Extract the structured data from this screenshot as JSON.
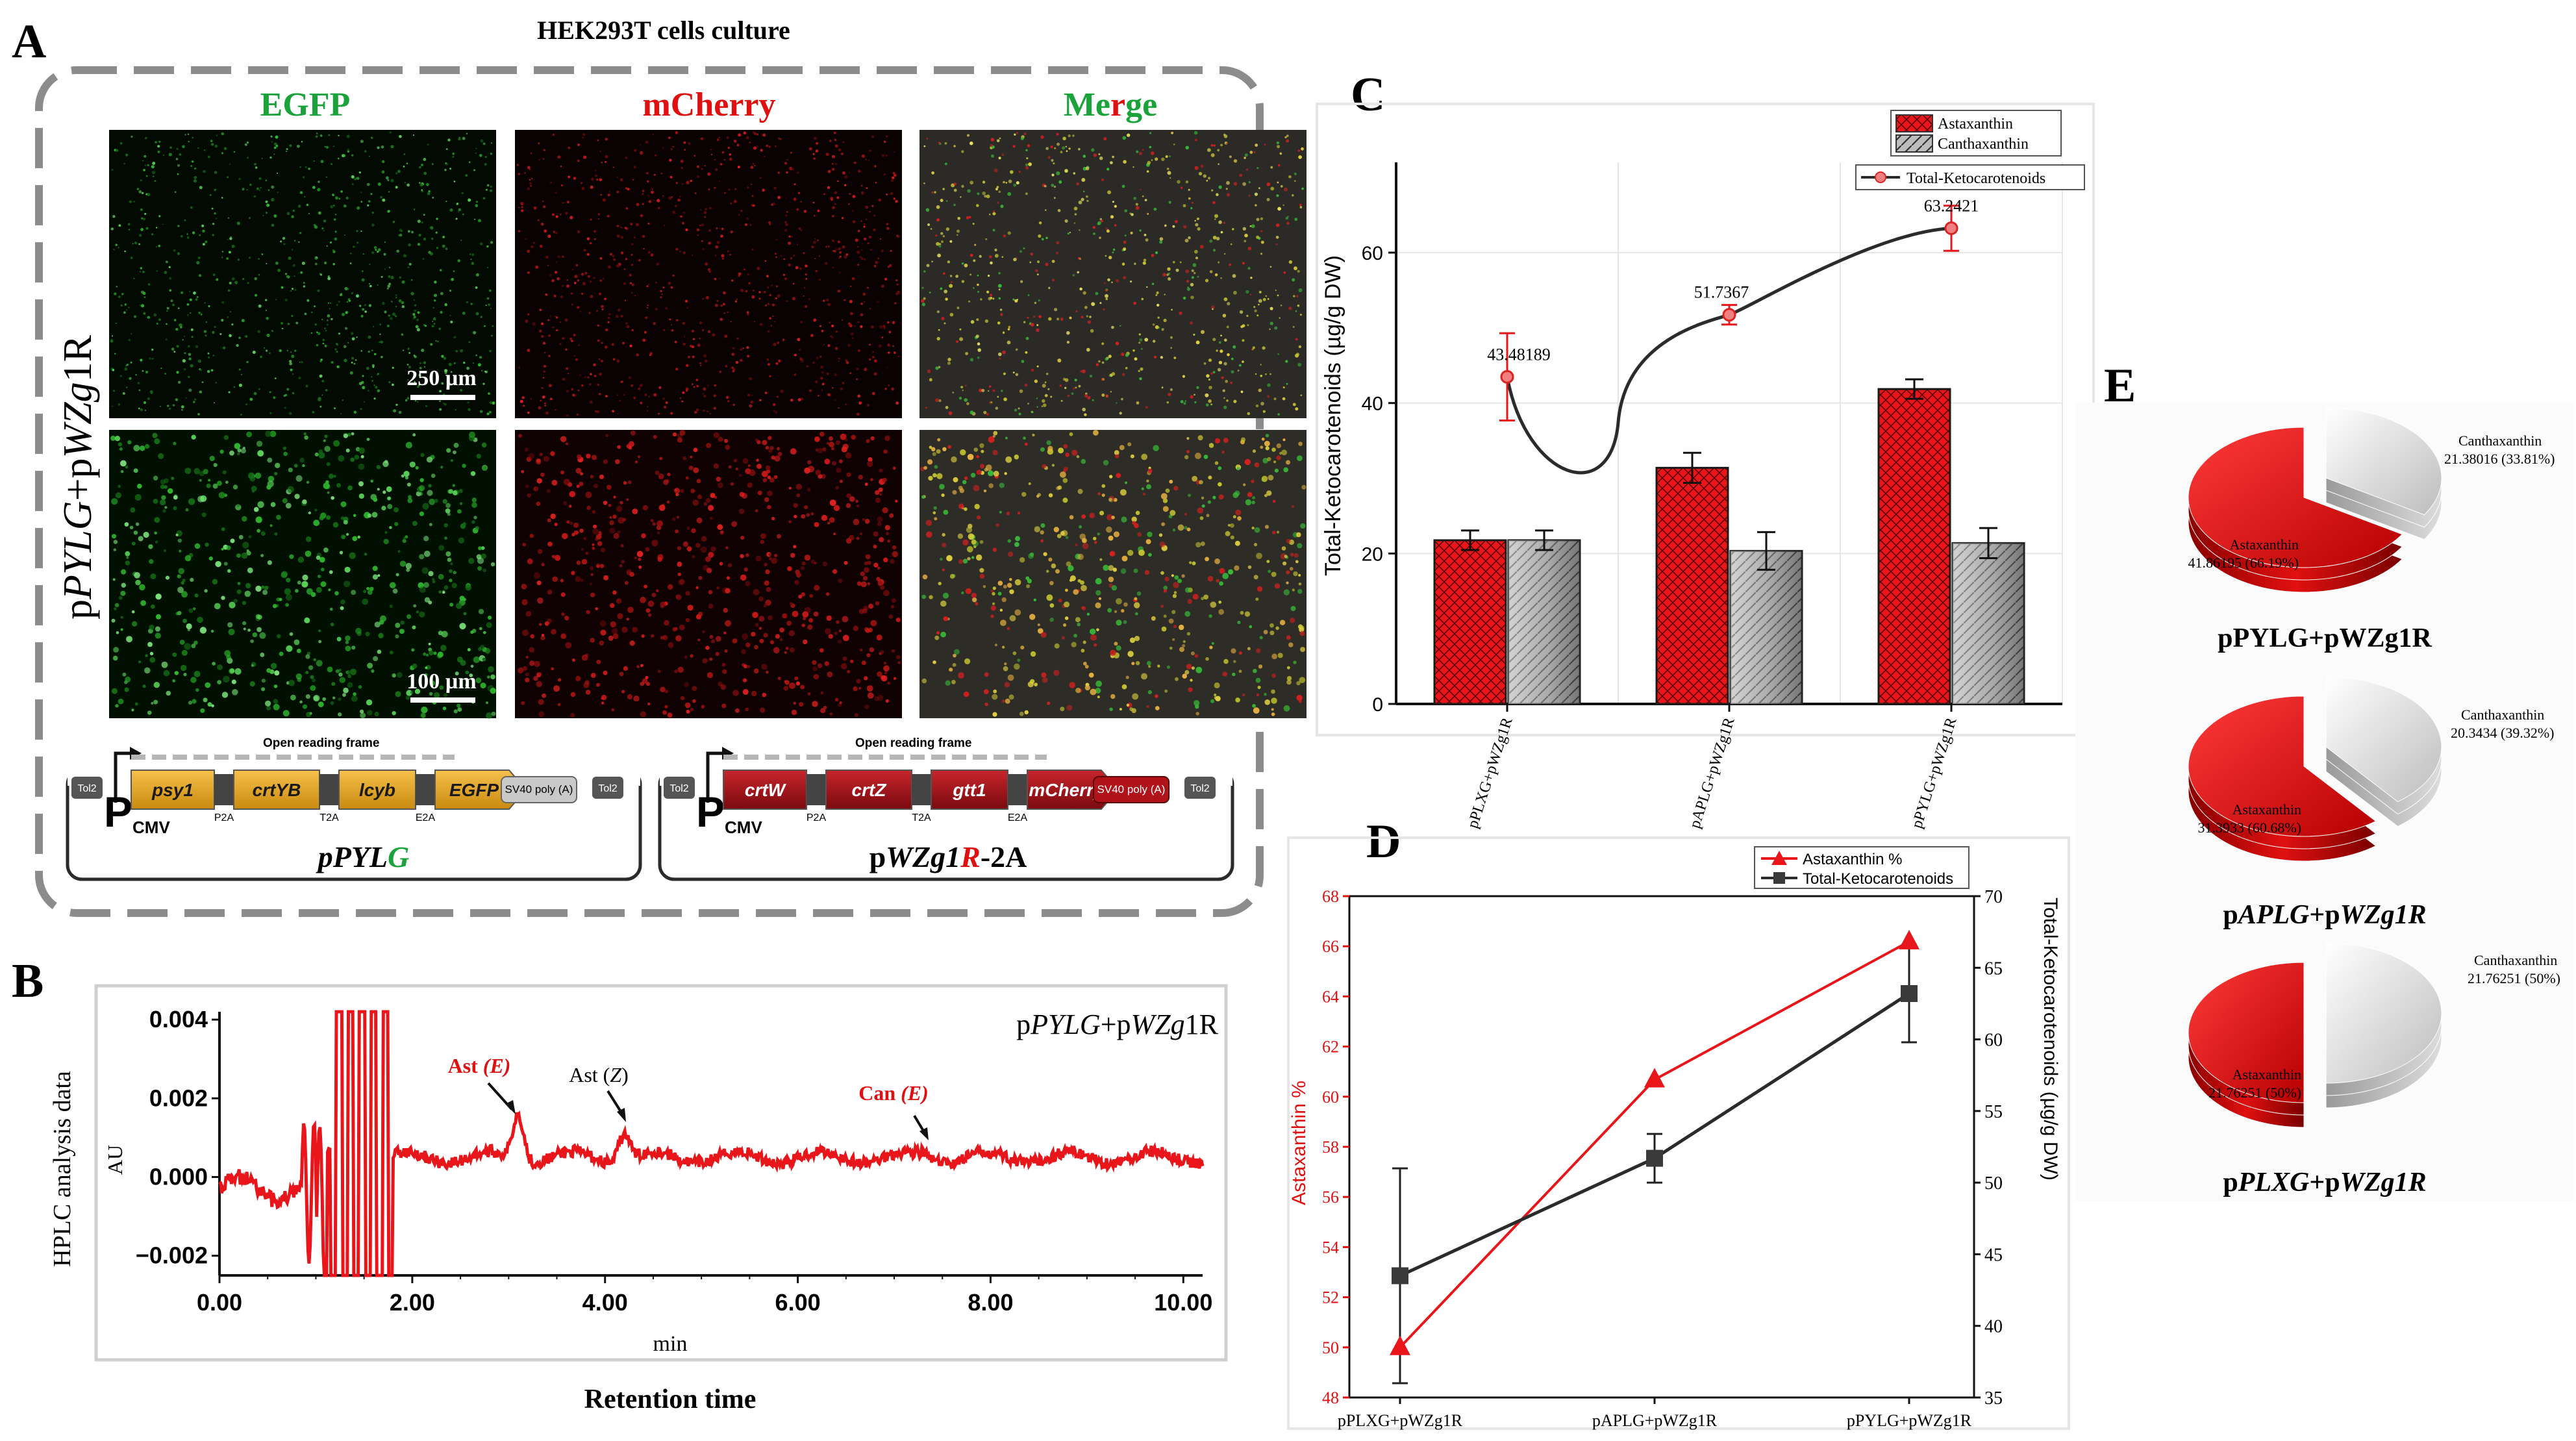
{
  "panel_letters": {
    "a": "A",
    "b": "B",
    "c": "C",
    "d": "D",
    "e": "E"
  },
  "panel_a": {
    "title": "HEK293T cells  culture",
    "col_egfp": "EGFP",
    "col_mcherry": "mCherry",
    "col_merge_1": "Me",
    "col_merge_2": "r",
    "col_merge_3": "ge",
    "row_label_p1": "p",
    "row_label_it1": "PYLG",
    "row_label_p2": "+p",
    "row_label_it2": "WZg",
    "row_label_p3": "1R",
    "scale_top": "250 µm",
    "scale_bottom": "100 µm",
    "plasmid1": {
      "orf": "Open reading frame",
      "tol_left": "Tol2",
      "tol_right": "Tol2",
      "promoter": "P",
      "promoter_sub": "CMV",
      "genes": [
        "psy1",
        "crtYB",
        "lcyb",
        "EGFP"
      ],
      "linkers": [
        "P2A",
        "T2A",
        "E2A"
      ],
      "polya": "SV40 poly (A)",
      "name_a": "pPYL",
      "name_b": "G"
    },
    "plasmid2": {
      "orf": "Open reading frame",
      "tol_left": "Tol2",
      "tol_right": "Tol2",
      "promoter": "P",
      "promoter_sub": "CMV",
      "genes": [
        "crtW",
        "crtZ",
        "gtt1",
        "mCherry"
      ],
      "linkers": [
        "P2A",
        "T2A",
        "E2A"
      ],
      "polya": "SV40 poly (A)",
      "name_a": "p",
      "name_b": "WZg1",
      "name_c": "R",
      "name_d": "-2A"
    }
  },
  "panel_b": {
    "ylabel": "HPLC analysis data",
    "unit": "AU",
    "xlabel_unit": "min",
    "xlabel": "Retention time",
    "sample_p1": "p",
    "sample_it1": "PYLG",
    "sample_p2": "+p",
    "sample_it2": "WZg",
    "sample_p3": "1R",
    "peak_ast_e": "Ast ",
    "peak_ast_e_it": "(E)",
    "peak_ast_z": "Ast (",
    "peak_ast_z_it": "Z",
    "peak_ast_z_end": ")",
    "peak_can_e": "Can ",
    "peak_can_e_it": "(E)",
    "yticks": [
      "0.004",
      "0.002",
      "0.000",
      "−0.002"
    ],
    "xticks": [
      "0.00",
      "2.00",
      "4.00",
      "6.00",
      "8.00",
      "10.00"
    ]
  },
  "panel_c_labels": {
    "ylabel": "Total-Ketocarotenoids (µg/g DW)",
    "yticks": [
      "0",
      "20",
      "40",
      "60"
    ],
    "legend_ast": "Astaxanthin",
    "legend_can": "Canthaxanthin",
    "legend_total": "Total-Ketocarotenoids",
    "point_labels": [
      "43.48189",
      "51.7367",
      "63.2421"
    ]
  },
  "panel_d_labels": {
    "ylabel_left": "Astaxanthin %",
    "ylabel_right": "Total-Ketocarotenoids (µg/g DW)",
    "legend_ast": "Astaxanthin %",
    "legend_total": "Total-Ketocarotenoids",
    "yticks_left": [
      "48",
      "50",
      "52",
      "54",
      "56",
      "58",
      "60",
      "62",
      "64",
      "66",
      "68"
    ],
    "yticks_right": [
      "35",
      "40",
      "45",
      "50",
      "55",
      "60",
      "65",
      "70"
    ]
  },
  "panel_e": {
    "pie1": {
      "ast": "Astaxanthin",
      "ast_val": "41.86195 (66.19%)",
      "can": "Canthaxanthin",
      "can_val": "21.38016 (33.81%)",
      "caption": "pPYLG+pWZg1R"
    },
    "pie2": {
      "ast": "Astaxanthin",
      "ast_val": "31.3933 (60.68%)",
      "can": "Canthaxanthin",
      "can_val": "20.3434 (39.32%)",
      "caption_p1": "p",
      "caption_it1": "APLG",
      "caption_p2": "+p",
      "caption_it2": "WZg1R"
    },
    "pie3": {
      "ast": "Astaxanthin",
      "ast_val": "21.76251 (50%)",
      "can": "Canthaxanthin",
      "can_val": "21.76251 (50%)",
      "caption_p1": "p",
      "caption_it1": "PLXG",
      "caption_p2": "+p",
      "caption_it2": "WZg1R"
    }
  },
  "colors": {
    "astaxanthin": "#e8161a",
    "canthaxanthin": "#9e9e9e",
    "line": "#2b2b2b",
    "egfp": "#16a34a",
    "mcherry": "#e01010",
    "plasmid1": "#e9a21c",
    "plasmid2": "#a01218"
  },
  "chart_data": [
    {
      "type": "bar",
      "title": "C",
      "categories": [
        "pPLXG+pWZg1R",
        "pAPLG+pWZg1R",
        "pPYLG+pWZg1R"
      ],
      "series": [
        {
          "name": "Astaxanthin",
          "values": [
            21.76,
            31.39,
            41.86
          ],
          "errors": [
            1.3,
            2.0,
            1.3
          ]
        },
        {
          "name": "Canthaxanthin",
          "values": [
            21.76,
            20.34,
            21.38
          ],
          "errors": [
            1.3,
            2.5,
            2.0
          ]
        },
        {
          "name": "Total-Ketocarotenoids",
          "kind": "line",
          "values": [
            43.48189,
            51.7367,
            63.2421
          ],
          "errors": [
            5.8,
            1.3,
            3.0
          ]
        }
      ],
      "xlabel": "",
      "ylabel": "Total-Ketocarotenoids (µg/g DW)",
      "ylim": [
        0,
        72
      ]
    },
    {
      "type": "line",
      "title": "D",
      "categories": [
        "pPLXG+pWZg1R",
        "pAPLG+pWZg1R",
        "pPYLG+pWZg1R"
      ],
      "series": [
        {
          "name": "Astaxanthin %",
          "axis": "left",
          "values": [
            50,
            60.68,
            66.19
          ]
        },
        {
          "name": "Total-Ketocarotenoids",
          "axis": "right",
          "values": [
            43.5,
            51.7,
            63.2
          ],
          "errors": [
            7.5,
            1.7,
            3.4
          ]
        }
      ],
      "ylabel": "Astaxanthin %",
      "ylabel_right": "Total-Ketocarotenoids (µg/g DW)",
      "ylim": [
        48,
        68
      ],
      "ylim_right": [
        35,
        70
      ]
    },
    {
      "type": "bar",
      "title": "B",
      "categories": [
        "Ast (E)",
        "Ast (Z)",
        "Can (E)"
      ],
      "values": [
        0.0017,
        0.0012,
        0.0006
      ],
      "xlabel": "Retention time (min)",
      "ylabel": "AU",
      "x_positions": [
        3.1,
        4.2,
        7.3
      ],
      "xlim": [
        0,
        10.2
      ],
      "ylim": [
        -0.0025,
        0.0042
      ]
    },
    {
      "type": "pie",
      "title": "E",
      "groups": [
        {
          "name": "pPYLG+pWZg1R",
          "labels": [
            "Astaxanthin",
            "Canthaxanthin"
          ],
          "values": [
            41.86195,
            21.38016
          ],
          "percents": [
            66.19,
            33.81
          ]
        },
        {
          "name": "pAPLG+pWZg1R",
          "labels": [
            "Astaxanthin",
            "Canthaxanthin"
          ],
          "values": [
            31.3933,
            20.3434
          ],
          "percents": [
            60.68,
            39.32
          ]
        },
        {
          "name": "pPLXG+pWZg1R",
          "labels": [
            "Astaxanthin",
            "Canthaxanthin"
          ],
          "values": [
            21.76251,
            21.76251
          ],
          "percents": [
            50,
            50
          ]
        }
      ]
    }
  ]
}
